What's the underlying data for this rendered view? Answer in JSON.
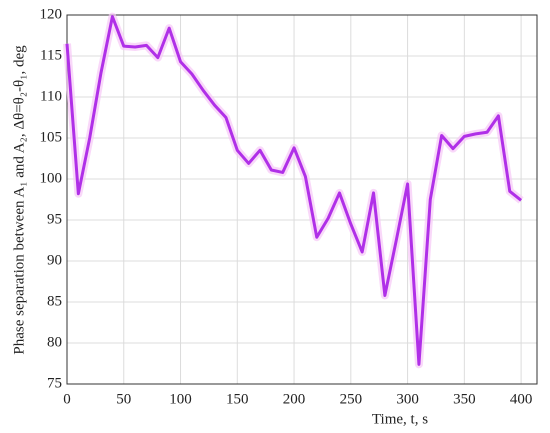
{
  "chart_data": {
    "type": "line",
    "xlabel": "Time,  t, s",
    "ylabel": "Phase separation between A₁ and A₂, Δθ=θ₂-θ₁, deg",
    "x": [
      0,
      10,
      20,
      30,
      40,
      50,
      60,
      70,
      80,
      90,
      100,
      110,
      120,
      130,
      140,
      150,
      160,
      170,
      180,
      190,
      200,
      210,
      220,
      230,
      240,
      250,
      260,
      270,
      280,
      290,
      300,
      310,
      320,
      330,
      340,
      350,
      360,
      370,
      380,
      390,
      400
    ],
    "series": [
      {
        "color": "#b030e8",
        "values": [
          116.5,
          98.2,
          105,
          113,
          119.8,
          116.2,
          116.1,
          116.3,
          114.8,
          118.4,
          114.3,
          112.8,
          110.8,
          109,
          107.5,
          103.5,
          101.9,
          103.5,
          101.1,
          100.8,
          103.8,
          100.3,
          92.9,
          95.2,
          98.3,
          94.5,
          91.1,
          98.3,
          85.8,
          92.5,
          99.4,
          77.4,
          97.5,
          105.3,
          103.7,
          105.2,
          105.5,
          105.7,
          107.7,
          98.5,
          97.4
        ]
      }
    ],
    "xlim": [
      0,
      414
    ],
    "ylim": [
      75,
      120
    ],
    "xticks": [
      0,
      50,
      100,
      150,
      200,
      250,
      300,
      350,
      400
    ],
    "yticks": [
      75,
      80,
      85,
      90,
      95,
      100,
      105,
      110,
      115,
      120
    ],
    "grid": true
  }
}
